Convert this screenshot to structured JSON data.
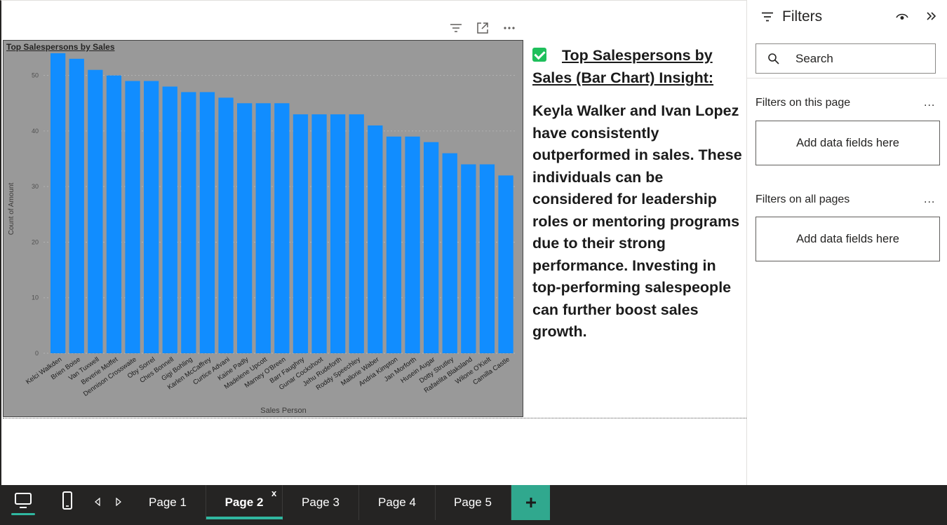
{
  "visual_toolbar": {
    "icons": [
      "filter-icon",
      "focus-mode-icon",
      "more-options-icon"
    ]
  },
  "chart_data": {
    "type": "bar",
    "title": "Top Salespersons by Sales",
    "xlabel": "Sales Person",
    "ylabel": "Count of Amount",
    "ylim": [
      0,
      55
    ],
    "yticks": [
      0,
      10,
      20,
      30,
      40,
      50
    ],
    "grid": true,
    "bar_color": "#118dff",
    "background": "#999999",
    "categories": [
      "Kelci Walkden",
      "Brien Boise",
      "Van Tuxwell",
      "Beverie Moffet",
      "Dennison Crosswaite",
      "Oby Sorrel",
      "Ches Bonnell",
      "Gigi Bohling",
      "Karlen McCaffrey",
      "Curtice Advani",
      "Kaine Padly",
      "Madelene Upcott",
      "Marney O'Breen",
      "Barr Faughny",
      "Gunar Cockshoot",
      "Jehu Rudeforth",
      "Roddy Speechley",
      "Mallorie Waber",
      "Andria Kimpton",
      "Jan Morforth",
      "Husein Augar",
      "Dotty Strutley",
      "Rafaelita Blaksland",
      "Wilone O'Kielt",
      "Camilla Castle"
    ],
    "values": [
      54,
      53,
      51,
      50,
      49,
      49,
      48,
      47,
      47,
      46,
      45,
      45,
      45,
      43,
      43,
      43,
      43,
      41,
      39,
      39,
      38,
      36,
      34,
      34,
      32
    ]
  },
  "insight": {
    "heading": "Top Salespersons by Sales (Bar Chart) Insight:",
    "body": "Keyla Walker and Ivan Lopez have consistently outperformed in sales. These individuals can be considered for leadership roles or mentoring programs due to their strong performance. Investing in top-performing salespeople can further boost sales growth."
  },
  "filters_pane": {
    "title": "Filters",
    "search_placeholder": "Search",
    "section_page": "Filters on this page",
    "section_all": "Filters on all pages",
    "more": "...",
    "drop_text": "Add data fields here"
  },
  "bottom_bar": {
    "pages": [
      "Page 1",
      "Page 2",
      "Page 3",
      "Page 4",
      "Page 5"
    ],
    "active_page": "Page 2",
    "close_label": "x",
    "accent": "#30b7a0"
  }
}
